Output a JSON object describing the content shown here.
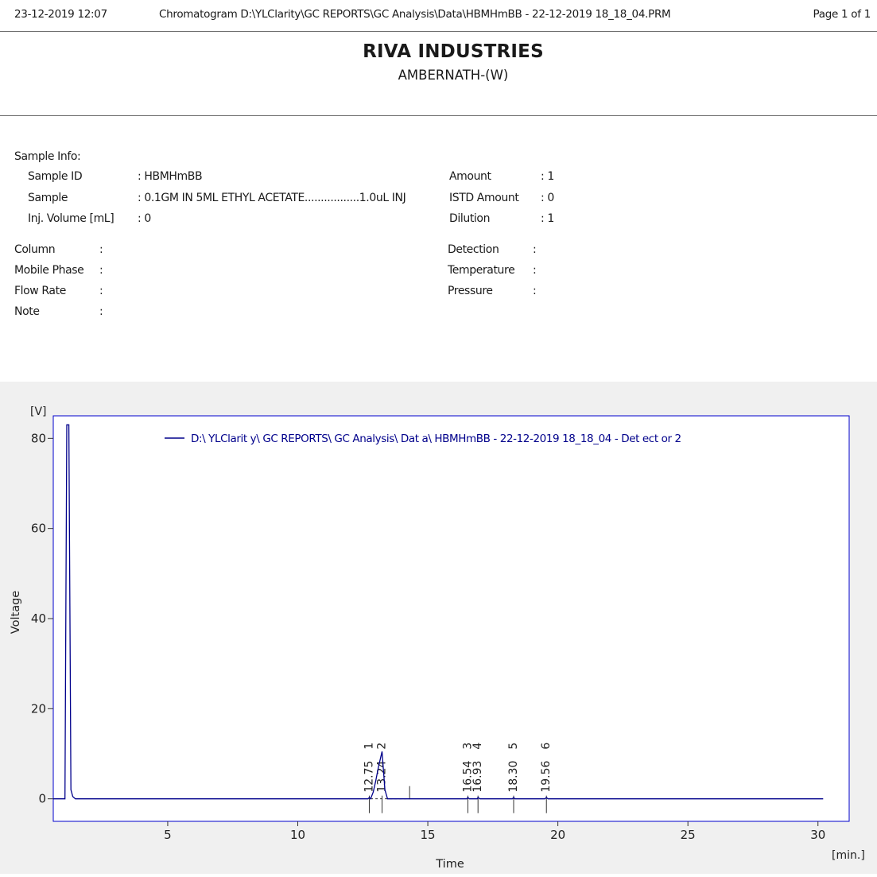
{
  "header": {
    "datetime": "23-12-2019  12:07",
    "path": "Chromatogram D:\\YLClarity\\GC REPORTS\\GC Analysis\\Data\\HBMHmBB - 22-12-2019 18_18_04.PRM",
    "page": "Page 1 of 1"
  },
  "company": {
    "name": "RIVA INDUSTRIES",
    "location": "AMBERNATH-(W)"
  },
  "sample_info": {
    "heading": "Sample Info:",
    "left": [
      {
        "label": "Sample ID",
        "value": ": HBMHmBB"
      },
      {
        "label": "Sample",
        "value": ": 0.1GM IN 5ML ETHYL ACETATE.................1.0uL INJ"
      },
      {
        "label": "Inj. Volume [mL]",
        "value": ": 0"
      }
    ],
    "right": [
      {
        "label": "Amount",
        "value": ": 1"
      },
      {
        "label": "ISTD Amount",
        "value": ": 0"
      },
      {
        "label": "Dilution",
        "value": ": 1"
      }
    ]
  },
  "method": {
    "left": [
      {
        "label": "Column",
        "value": ":"
      },
      {
        "label": "Mobile Phase",
        "value": ":"
      },
      {
        "label": "Flow Rate",
        "value": ":"
      },
      {
        "label": "Note",
        "value": ":"
      }
    ],
    "right": [
      {
        "label": "Detection",
        "value": ":"
      },
      {
        "label": "Temperature",
        "value": ":"
      },
      {
        "label": "Pressure",
        "value": ":"
      }
    ]
  },
  "chart_data": {
    "type": "line",
    "ylabel": "Voltage",
    "yunit": "[V]",
    "xlabel": "Time",
    "xunit": "[min.]",
    "xlim": [
      0.6,
      31.2
    ],
    "ylim": [
      -5,
      85
    ],
    "xticks": [
      5,
      10,
      15,
      20,
      25,
      30
    ],
    "yticks": [
      0,
      20,
      40,
      60,
      80
    ],
    "legend_position": "top",
    "series": [
      {
        "name": "D:\\ YLClarit y\\ GC REPORTS\\ GC Analysis\\ Dat a\\ HBMHmBB - 22-12-2019 18_18_04 - Det ect or 2",
        "color": "#00008b",
        "x": [
          0.6,
          1.05,
          1.08,
          1.12,
          1.2,
          1.28,
          1.35,
          1.45,
          12.7,
          12.75,
          12.8,
          12.9,
          13.0,
          13.1,
          13.2,
          13.24,
          13.3,
          13.35,
          13.45,
          16.5,
          16.54,
          16.6,
          16.9,
          16.93,
          17.0,
          18.25,
          18.3,
          18.35,
          19.5,
          19.56,
          19.62,
          30.2
        ],
        "y": [
          0,
          0,
          37,
          83,
          83,
          2,
          0.5,
          0,
          0,
          0.3,
          0,
          1.5,
          4,
          7,
          9.5,
          10.5,
          6,
          2,
          0,
          0,
          0.3,
          0,
          0,
          0.3,
          0,
          0,
          0.3,
          0,
          0,
          0.3,
          0,
          0
        ]
      }
    ],
    "peaks": [
      {
        "number": "1",
        "time": "12.75",
        "x": 12.75
      },
      {
        "number": "2",
        "time": "13.24",
        "x": 13.24
      },
      {
        "number": "3",
        "time": "16.54",
        "x": 16.54
      },
      {
        "number": "4",
        "time": "16.93",
        "x": 16.93
      },
      {
        "number": "5",
        "time": "18.30",
        "x": 18.3
      },
      {
        "number": "6",
        "time": "19.56",
        "x": 19.56
      }
    ]
  }
}
